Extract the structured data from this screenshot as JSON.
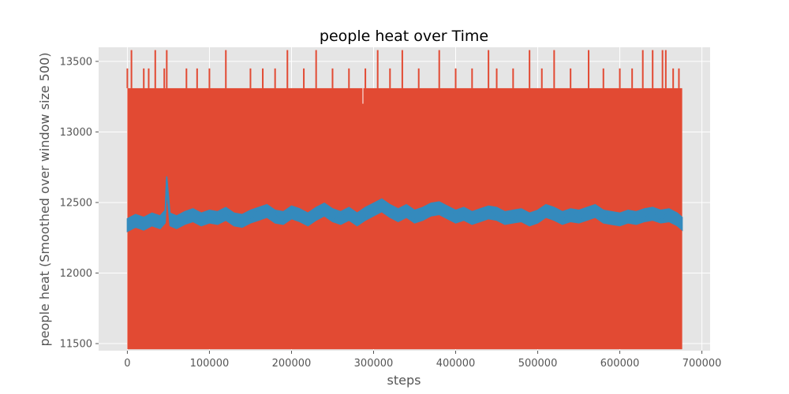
{
  "chart_data": {
    "type": "line",
    "title": "people heat over Time",
    "xlabel": "steps",
    "ylabel": "people heat (Smoothed over window size 500)",
    "xlim": [
      -35000,
      710000
    ],
    "ylim": [
      11450,
      13600
    ],
    "x_ticks": [
      0,
      100000,
      200000,
      300000,
      400000,
      500000,
      600000,
      700000
    ],
    "x_tick_labels": [
      "0",
      "100000",
      "200000",
      "300000",
      "400000",
      "500000",
      "600000",
      "700000"
    ],
    "y_ticks": [
      11500,
      12000,
      12500,
      13000,
      13500
    ],
    "y_tick_labels": [
      "11500",
      "12000",
      "12500",
      "13000",
      "13500"
    ],
    "grid": true,
    "style": "ggplot",
    "series": [
      {
        "color": "#E24A33",
        "kind": "raw",
        "x_range": [
          0,
          676000
        ],
        "band_min": 11460,
        "band_max": 13310,
        "spikes": [
          {
            "x": 0,
            "y": 13450
          },
          {
            "x": 5000,
            "y": 13580
          },
          {
            "x": 20000,
            "y": 13450
          },
          {
            "x": 26000,
            "y": 13450
          },
          {
            "x": 34000,
            "y": 13580
          },
          {
            "x": 45000,
            "y": 13450
          },
          {
            "x": 48000,
            "y": 13580
          },
          {
            "x": 72000,
            "y": 13450
          },
          {
            "x": 85000,
            "y": 13450
          },
          {
            "x": 100000,
            "y": 13450
          },
          {
            "x": 120000,
            "y": 13580
          },
          {
            "x": 150000,
            "y": 13450
          },
          {
            "x": 165000,
            "y": 13450
          },
          {
            "x": 180000,
            "y": 13450
          },
          {
            "x": 195000,
            "y": 13580
          },
          {
            "x": 215000,
            "y": 13450
          },
          {
            "x": 230000,
            "y": 13580
          },
          {
            "x": 250000,
            "y": 13450
          },
          {
            "x": 270000,
            "y": 13450
          },
          {
            "x": 290000,
            "y": 13450
          },
          {
            "x": 305000,
            "y": 13580
          },
          {
            "x": 320000,
            "y": 13450
          },
          {
            "x": 335000,
            "y": 13580
          },
          {
            "x": 355000,
            "y": 13450
          },
          {
            "x": 380000,
            "y": 13580
          },
          {
            "x": 400000,
            "y": 13450
          },
          {
            "x": 420000,
            "y": 13450
          },
          {
            "x": 440000,
            "y": 13580
          },
          {
            "x": 450000,
            "y": 13450
          },
          {
            "x": 470000,
            "y": 13450
          },
          {
            "x": 490000,
            "y": 13580
          },
          {
            "x": 505000,
            "y": 13450
          },
          {
            "x": 520000,
            "y": 13580
          },
          {
            "x": 540000,
            "y": 13450
          },
          {
            "x": 562000,
            "y": 13580
          },
          {
            "x": 580000,
            "y": 13450
          },
          {
            "x": 600000,
            "y": 13450
          },
          {
            "x": 615000,
            "y": 13450
          },
          {
            "x": 628000,
            "y": 13580
          },
          {
            "x": 640000,
            "y": 13580
          },
          {
            "x": 652000,
            "y": 13580
          },
          {
            "x": 656000,
            "y": 13580
          },
          {
            "x": 665000,
            "y": 13450
          },
          {
            "x": 672000,
            "y": 13450
          }
        ]
      },
      {
        "color": "#348ABD",
        "kind": "smoothed",
        "x": [
          0,
          10000,
          20000,
          30000,
          40000,
          46000,
          48000,
          52000,
          60000,
          70000,
          80000,
          90000,
          100000,
          110000,
          120000,
          130000,
          140000,
          150000,
          160000,
          170000,
          180000,
          190000,
          200000,
          210000,
          220000,
          230000,
          240000,
          250000,
          260000,
          270000,
          280000,
          290000,
          300000,
          310000,
          320000,
          330000,
          340000,
          350000,
          360000,
          370000,
          380000,
          390000,
          400000,
          410000,
          420000,
          430000,
          440000,
          450000,
          460000,
          470000,
          480000,
          490000,
          500000,
          510000,
          520000,
          530000,
          540000,
          550000,
          560000,
          570000,
          580000,
          590000,
          600000,
          610000,
          620000,
          630000,
          640000,
          650000,
          660000,
          670000,
          676000
        ],
        "y": [
          12340,
          12370,
          12350,
          12380,
          12360,
          12400,
          12640,
          12380,
          12360,
          12390,
          12410,
          12380,
          12400,
          12390,
          12420,
          12380,
          12370,
          12400,
          12420,
          12440,
          12400,
          12390,
          12430,
          12410,
          12380,
          12420,
          12450,
          12410,
          12390,
          12420,
          12380,
          12420,
          12450,
          12480,
          12440,
          12410,
          12440,
          12400,
          12420,
          12450,
          12460,
          12430,
          12400,
          12420,
          12390,
          12410,
          12430,
          12420,
          12390,
          12400,
          12410,
          12380,
          12400,
          12440,
          12420,
          12390,
          12410,
          12400,
          12420,
          12440,
          12400,
          12390,
          12380,
          12400,
          12390,
          12410,
          12420,
          12400,
          12410,
          12380,
          12350
        ],
        "band_half_width": 45
      }
    ]
  }
}
